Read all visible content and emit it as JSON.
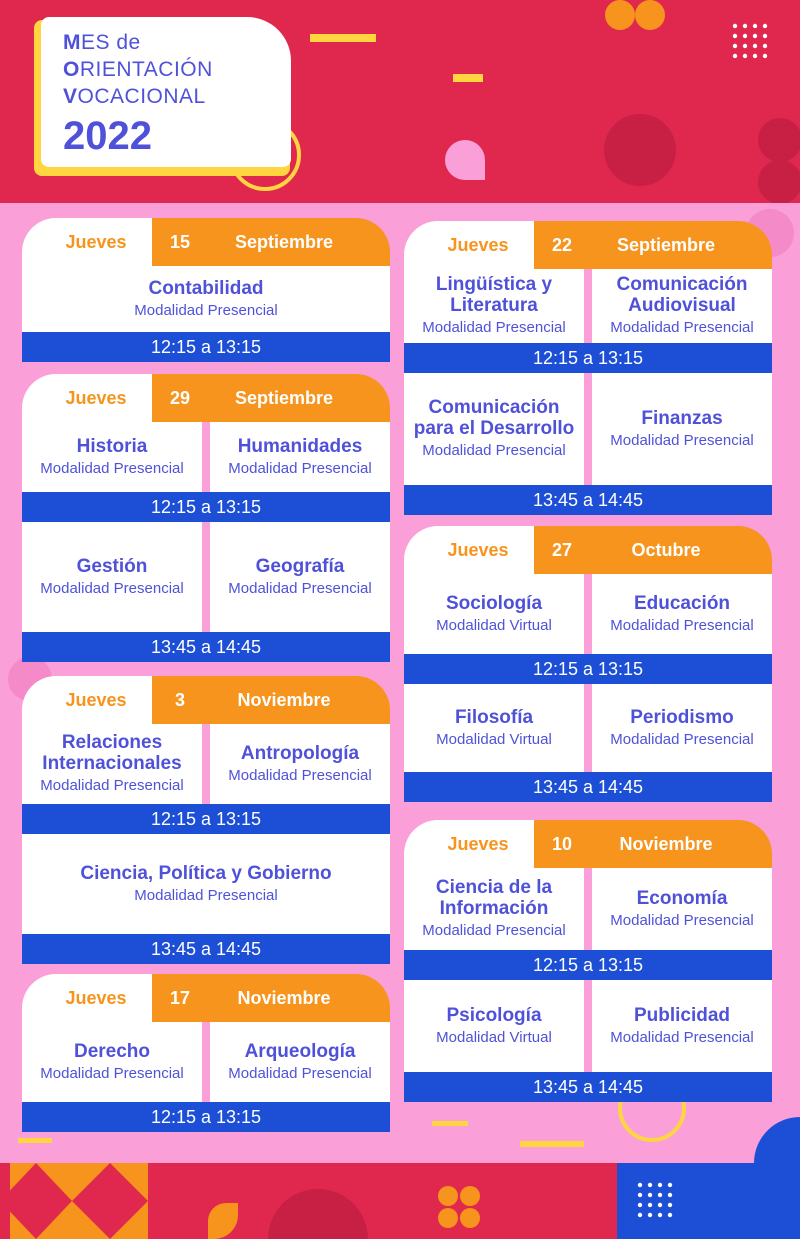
{
  "header": {
    "title_lines": [
      {
        "initial": "M",
        "rest": "ES de"
      },
      {
        "initial": "O",
        "rest": "RIENTACIÓN"
      },
      {
        "initial": "V",
        "rest": "OCACIONAL"
      }
    ],
    "year": "2022"
  },
  "colors": {
    "header_red": "#e0284e",
    "background_pink": "#fb9fd9",
    "accent_orange": "#f7941d",
    "text_blue": "#4f52d9",
    "time_bar_blue": "#1c4fd6",
    "accent_yellow": "#ffd640"
  },
  "cards": [
    {
      "day": "Jueves",
      "num": "15",
      "month": "Septiembre",
      "blocks": [
        {
          "items": [
            {
              "title": "Contabilidad",
              "mode": "Modalidad Presencial"
            }
          ],
          "time": "12:15 a 13:15"
        }
      ]
    },
    {
      "day": "Jueves",
      "num": "29",
      "month": "Septiembre",
      "blocks": [
        {
          "items": [
            {
              "title": "Historia",
              "mode": "Modalidad Presencial"
            },
            {
              "title": "Humanidades",
              "mode": "Modalidad Presencial"
            }
          ],
          "time": "12:15 a 13:15"
        },
        {
          "items": [
            {
              "title": "Gestión",
              "mode": "Modalidad Presencial"
            },
            {
              "title": "Geografía",
              "mode": "Modalidad Presencial"
            }
          ],
          "time": "13:45 a 14:45"
        }
      ]
    },
    {
      "day": "Jueves",
      "num": "3",
      "month": "Noviembre",
      "blocks": [
        {
          "items": [
            {
              "title": "Relaciones Internacionales",
              "mode": "Modalidad Presencial"
            },
            {
              "title": "Antropología",
              "mode": "Modalidad Presencial"
            }
          ],
          "time": "12:15 a 13:15"
        },
        {
          "items": [
            {
              "title": "Ciencia, Política y Gobierno",
              "mode": "Modalidad Presencial"
            }
          ],
          "time": "13:45 a 14:45"
        }
      ]
    },
    {
      "day": "Jueves",
      "num": "17",
      "month": "Noviembre",
      "blocks": [
        {
          "items": [
            {
              "title": "Derecho",
              "mode": "Modalidad Presencial"
            },
            {
              "title": "Arqueología",
              "mode": "Modalidad Presencial"
            }
          ],
          "time": "12:15 a 13:15"
        }
      ]
    },
    {
      "day": "Jueves",
      "num": "22",
      "month": "Septiembre",
      "blocks": [
        {
          "items": [
            {
              "title": "Lingüística y Literatura",
              "mode": "Modalidad Presencial"
            },
            {
              "title": "Comunicación Audiovisual",
              "mode": "Modalidad Presencial"
            }
          ],
          "time": "12:15 a 13:15"
        },
        {
          "items": [
            {
              "title": "Comunicación para el Desarrollo",
              "mode": "Modalidad Presencial"
            },
            {
              "title": "Finanzas",
              "mode": "Modalidad Presencial"
            }
          ],
          "time": "13:45 a 14:45"
        }
      ]
    },
    {
      "day": "Jueves",
      "num": "27",
      "month": "Octubre",
      "blocks": [
        {
          "items": [
            {
              "title": "Sociología",
              "mode": "Modalidad Virtual"
            },
            {
              "title": "Educación",
              "mode": "Modalidad Presencial"
            }
          ],
          "time": "12:15 a 13:15"
        },
        {
          "items": [
            {
              "title": "Filosofía",
              "mode": "Modalidad Virtual"
            },
            {
              "title": "Periodismo",
              "mode": "Modalidad Presencial"
            }
          ],
          "time": "13:45 a 14:45"
        }
      ]
    },
    {
      "day": "Jueves",
      "num": "10",
      "month": "Noviembre",
      "blocks": [
        {
          "items": [
            {
              "title": "Ciencia de la Información",
              "mode": "Modalidad Presencial"
            },
            {
              "title": "Economía",
              "mode": "Modalidad Presencial"
            }
          ],
          "time": "12:15 a 13:15"
        },
        {
          "items": [
            {
              "title": "Psicología",
              "mode": "Modalidad Virtual"
            },
            {
              "title": "Publicidad",
              "mode": "Modalidad Presencial"
            }
          ],
          "time": "13:45 a 14:45"
        }
      ]
    }
  ]
}
